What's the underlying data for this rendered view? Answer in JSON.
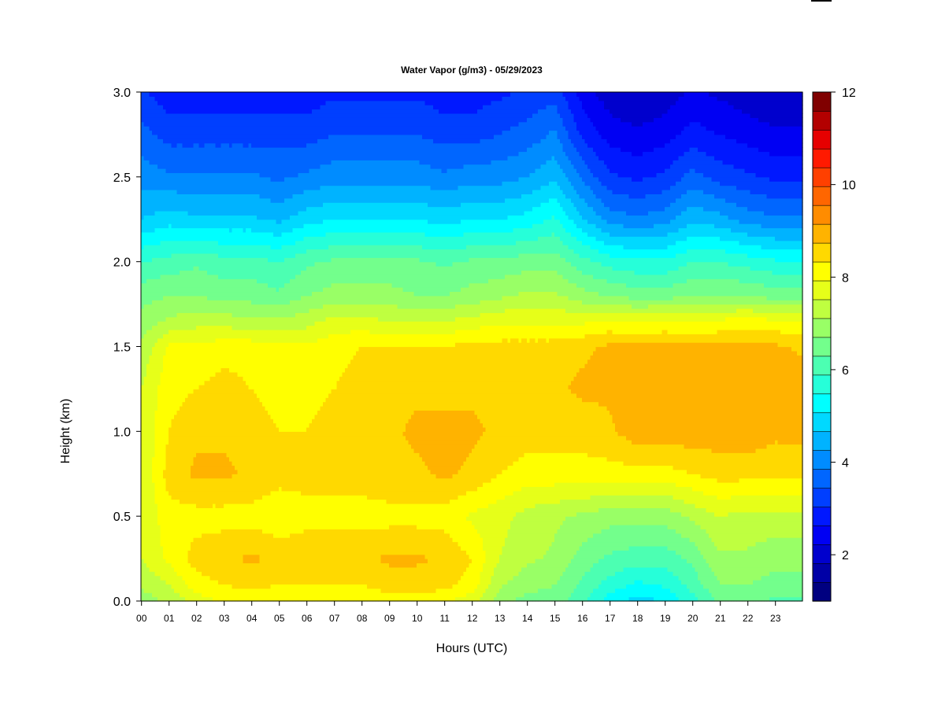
{
  "chart_data": {
    "type": "heatmap",
    "title": "Water Vapor (g/m3) - 05/29/2023",
    "xlabel": "Hours (UTC)",
    "ylabel": "Height (km)",
    "xlim": [
      0,
      24
    ],
    "ylim": [
      0.0,
      3.0
    ],
    "x_ticks": [
      "00",
      "01",
      "02",
      "03",
      "04",
      "05",
      "06",
      "07",
      "08",
      "09",
      "10",
      "11",
      "12",
      "13",
      "14",
      "15",
      "16",
      "17",
      "18",
      "19",
      "20",
      "21",
      "22",
      "23"
    ],
    "y_ticks": [
      "0.0",
      "0.5",
      "1.0",
      "1.5",
      "2.0",
      "2.5",
      "3.0"
    ],
    "colorbar": {
      "range": [
        1,
        12
      ],
      "ticks": [
        "2",
        "4",
        "6",
        "8",
        "10",
        "12"
      ],
      "step": 0.5,
      "colors": [
        "#000080",
        "#0000a6",
        "#0000cd",
        "#0000f3",
        "#0018ff",
        "#003fff",
        "#0066ff",
        "#008cff",
        "#00b3ff",
        "#00d9ff",
        "#00ffff",
        "#26ffd9",
        "#4cffb2",
        "#73ff8c",
        "#99ff66",
        "#bfff40",
        "#e6ff19",
        "#ffff00",
        "#ffd900",
        "#ffb300",
        "#ff8c00",
        "#ff6600",
        "#ff4000",
        "#ff1a00",
        "#e60000",
        "#b30000",
        "#800000"
      ]
    },
    "grid": false,
    "x": [
      0,
      1,
      2,
      3,
      4,
      5,
      6,
      7,
      8,
      9,
      10,
      11,
      12,
      13,
      14,
      15,
      16,
      17,
      18,
      19,
      20,
      21,
      22,
      23,
      24
    ],
    "y": [
      0.0,
      0.1,
      0.25,
      0.5,
      0.75,
      1.0,
      1.25,
      1.5,
      1.65,
      1.8,
      2.0,
      2.25,
      2.5,
      2.75,
      3.0
    ],
    "values": [
      [
        8.2,
        8.6,
        9.0,
        9.0,
        9.0,
        9.0,
        9.0,
        8.6,
        8.2,
        7.8,
        7.0,
        5.5,
        4.8,
        4.2,
        3.6
      ],
      [
        8.6,
        9.0,
        9.6,
        9.8,
        10.2,
        10.0,
        9.8,
        9.6,
        8.6,
        8.0,
        7.2,
        5.8,
        4.6,
        3.8,
        3.2
      ],
      [
        9.2,
        9.8,
        10.2,
        9.8,
        10.6,
        10.4,
        10.0,
        9.6,
        8.8,
        8.0,
        7.4,
        5.6,
        4.6,
        3.8,
        3.2
      ],
      [
        9.6,
        10.0,
        10.4,
        9.8,
        10.6,
        10.4,
        10.2,
        9.8,
        8.8,
        7.8,
        7.2,
        5.6,
        4.6,
        3.8,
        3.2
      ],
      [
        9.6,
        10.2,
        10.6,
        9.8,
        10.4,
        10.2,
        10.0,
        9.8,
        8.6,
        7.8,
        7.2,
        5.6,
        4.6,
        3.8,
        3.2
      ],
      [
        9.6,
        10.0,
        10.4,
        9.6,
        10.2,
        10.0,
        9.8,
        9.6,
        8.6,
        7.6,
        7.0,
        5.4,
        4.4,
        3.8,
        3.2
      ],
      [
        9.6,
        10.0,
        10.4,
        9.8,
        10.2,
        10.0,
        9.8,
        9.6,
        8.8,
        8.0,
        7.4,
        5.8,
        4.6,
        3.8,
        3.2
      ],
      [
        9.6,
        10.0,
        10.4,
        9.8,
        10.2,
        10.2,
        10.0,
        9.8,
        9.2,
        8.2,
        7.6,
        6.0,
        4.8,
        4.0,
        3.4
      ],
      [
        9.6,
        10.0,
        10.4,
        9.8,
        10.2,
        10.2,
        10.2,
        10.0,
        9.2,
        8.2,
        7.6,
        6.0,
        4.8,
        4.0,
        3.4
      ],
      [
        9.8,
        10.2,
        10.6,
        9.8,
        10.4,
        10.4,
        10.2,
        10.0,
        9.0,
        8.2,
        7.6,
        6.0,
        4.8,
        4.0,
        3.4
      ],
      [
        9.8,
        10.2,
        10.6,
        9.8,
        10.4,
        10.6,
        10.4,
        10.0,
        9.0,
        8.0,
        7.6,
        6.0,
        4.8,
        4.0,
        3.4
      ],
      [
        9.6,
        10.2,
        10.4,
        9.8,
        10.6,
        10.6,
        10.4,
        10.0,
        9.0,
        8.0,
        7.4,
        5.8,
        4.6,
        3.8,
        3.2
      ],
      [
        9.2,
        9.8,
        10.0,
        9.4,
        10.4,
        10.6,
        10.4,
        10.2,
        9.2,
        8.2,
        7.6,
        6.0,
        4.8,
        3.8,
        3.2
      ],
      [
        8.2,
        8.6,
        9.0,
        9.2,
        10.0,
        10.4,
        10.4,
        10.2,
        9.4,
        8.4,
        7.6,
        6.0,
        4.8,
        4.0,
        3.4
      ],
      [
        7.8,
        8.2,
        8.6,
        8.8,
        9.8,
        10.2,
        10.4,
        10.2,
        9.4,
        8.6,
        7.8,
        6.2,
        5.0,
        4.2,
        3.6
      ],
      [
        7.8,
        8.0,
        8.4,
        8.6,
        9.8,
        10.2,
        10.4,
        10.2,
        9.4,
        8.6,
        7.8,
        6.6,
        5.4,
        4.6,
        3.8
      ],
      [
        7.2,
        7.4,
        7.8,
        8.4,
        9.8,
        10.2,
        10.6,
        10.4,
        9.4,
        8.2,
        7.2,
        5.6,
        4.4,
        3.4,
        2.8
      ],
      [
        6.2,
        6.8,
        7.4,
        8.2,
        9.8,
        10.4,
        10.6,
        10.6,
        9.6,
        8.0,
        6.8,
        4.8,
        3.6,
        2.8,
        2.2
      ],
      [
        5.8,
        6.4,
        7.2,
        8.2,
        9.8,
        10.8,
        10.8,
        10.6,
        9.4,
        7.8,
        6.6,
        4.6,
        3.4,
        2.6,
        2.0
      ],
      [
        6.0,
        6.6,
        7.2,
        8.2,
        9.8,
        10.8,
        10.8,
        10.6,
        9.6,
        7.8,
        6.6,
        4.8,
        3.6,
        2.8,
        2.2
      ],
      [
        6.8,
        7.2,
        7.6,
        8.6,
        10.0,
        10.8,
        10.8,
        10.6,
        9.4,
        8.0,
        7.0,
        5.4,
        4.2,
        3.2,
        2.6
      ],
      [
        7.6,
        8.0,
        8.4,
        9.0,
        10.2,
        10.8,
        10.8,
        10.6,
        9.6,
        8.0,
        7.0,
        5.2,
        3.8,
        3.0,
        2.4
      ],
      [
        7.6,
        8.0,
        8.4,
        8.8,
        10.2,
        10.8,
        10.8,
        10.6,
        9.8,
        8.0,
        6.8,
        4.8,
        3.6,
        2.8,
        2.2
      ],
      [
        7.4,
        7.8,
        8.2,
        8.8,
        10.2,
        10.6,
        10.8,
        10.6,
        9.6,
        7.8,
        6.6,
        4.6,
        3.4,
        2.6,
        2.0
      ],
      [
        7.4,
        7.8,
        8.2,
        8.8,
        10.2,
        10.6,
        10.8,
        10.4,
        9.6,
        7.8,
        6.6,
        4.6,
        3.4,
        2.6,
        2.0
      ]
    ]
  }
}
